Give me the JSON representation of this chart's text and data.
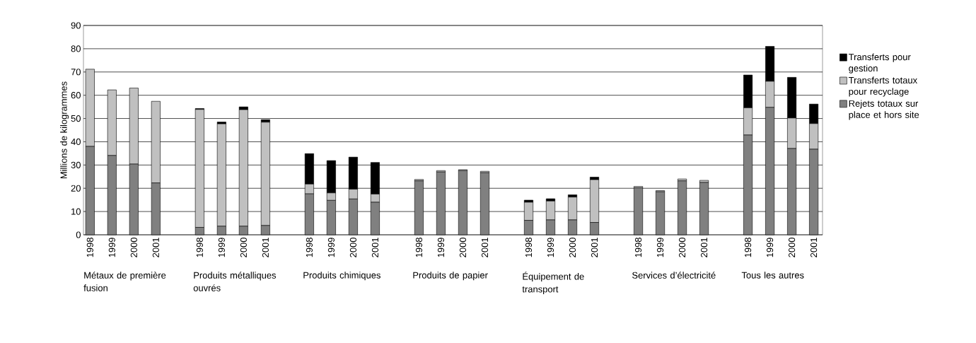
{
  "chart_data": {
    "type": "bar",
    "stacked": true,
    "categories": [
      "1998",
      "1999",
      "2000",
      "2001",
      null,
      "1998",
      "1999",
      "2000",
      "2001",
      null,
      "1998",
      "1999",
      "2000",
      "2001",
      null,
      "1998",
      "1999",
      "2000",
      "2001",
      null,
      "1998",
      "1999",
      "2000",
      "2001",
      null,
      "1998",
      "1999",
      "2000",
      "2001",
      null,
      "1998",
      "1999",
      "2000",
      "2001"
    ],
    "series": [
      {
        "name": "Rejets totaux sur place et hors site",
        "color": "#808080",
        "values": [
          38.0,
          34.1,
          30.4,
          22.3,
          null,
          3.2,
          3.7,
          3.7,
          4.0,
          null,
          17.6,
          14.8,
          15.4,
          14.0,
          null,
          23.2,
          27.0,
          27.6,
          26.7,
          null,
          6.2,
          6.4,
          6.4,
          5.3,
          null,
          20.2,
          18.5,
          23.2,
          22.5,
          null,
          42.9,
          54.8,
          37.1,
          36.8
        ]
      },
      {
        "name": "Transferts totaux pour recyclage",
        "color": "#c0c0c0",
        "values": [
          33.2,
          28.2,
          32.7,
          35.1,
          null,
          50.7,
          44.0,
          50.1,
          44.4,
          null,
          4.2,
          3.2,
          4.2,
          3.5,
          null,
          0.6,
          0.6,
          0.4,
          0.6,
          null,
          7.8,
          8.1,
          9.8,
          18.4,
          null,
          0.6,
          0.5,
          0.8,
          0.9,
          null,
          11.7,
          11.2,
          13.1,
          11.0
        ]
      },
      {
        "name": "Transferts pour gestion",
        "color": "#000000",
        "values": [
          0,
          0,
          0,
          0,
          null,
          0.4,
          0.8,
          1.2,
          1.1,
          null,
          13.1,
          13.9,
          13.8,
          13.6,
          null,
          0,
          0,
          0,
          0,
          null,
          0.9,
          1.0,
          1.0,
          1.1,
          null,
          0,
          0,
          0,
          0,
          null,
          14.1,
          15.0,
          17.5,
          8.4
        ]
      }
    ],
    "ylabel": "Millions de kilogrammes",
    "ylim": [
      0,
      90
    ],
    "yticks": [
      0,
      10,
      20,
      30,
      40,
      50,
      60,
      70,
      80,
      90
    ],
    "grid": "y",
    "legend": "right",
    "annotations": [
      "Métaux de première fusion",
      "Produits métalliques ouvrés",
      "Produits chimiques",
      "Produits de papier",
      "Équipement de transport",
      "Services d’électricité",
      "Tous les autres"
    ]
  }
}
